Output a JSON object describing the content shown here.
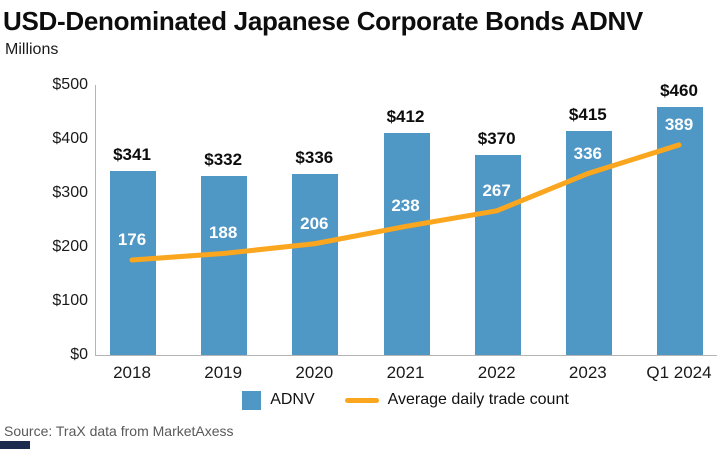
{
  "header": {
    "title": "USD-Denominated Japanese Corporate Bonds ADNV",
    "subtitle": "Millions"
  },
  "chart_data": {
    "type": "bar",
    "categories": [
      "2018",
      "2019",
      "2020",
      "2021",
      "2022",
      "2023",
      "Q1 2024"
    ],
    "series": [
      {
        "name": "ADNV",
        "type": "bar",
        "values": [
          341,
          332,
          336,
          412,
          370,
          415,
          460
        ],
        "labels": [
          "$341",
          "$332",
          "$336",
          "$412",
          "$370",
          "$415",
          "$460"
        ],
        "color": "#4F97C5"
      },
      {
        "name": "Average daily trade count",
        "type": "line",
        "values": [
          176,
          188,
          206,
          238,
          267,
          336,
          389
        ],
        "labels": [
          "176",
          "188",
          "206",
          "238",
          "267",
          "336",
          "389"
        ],
        "color": "#FAA61E"
      }
    ],
    "title": "USD-Denominated Japanese Corporate Bonds ADNV",
    "xlabel": "",
    "ylabel": "Millions",
    "ylim": [
      0,
      500
    ],
    "yticks": [
      {
        "value": 0,
        "label": "$0"
      },
      {
        "value": 100,
        "label": "$100"
      },
      {
        "value": 200,
        "label": "$200"
      },
      {
        "value": 300,
        "label": "$300"
      },
      {
        "value": 400,
        "label": "$400"
      },
      {
        "value": 500,
        "label": "$500"
      }
    ],
    "grid": false,
    "legend_position": "bottom"
  },
  "legend": {
    "items": [
      {
        "label": "ADNV",
        "swatch": "square",
        "color": "#4F97C5"
      },
      {
        "label": "Average daily trade count",
        "swatch": "line",
        "color": "#FAA61E"
      }
    ]
  },
  "footer": {
    "source": "Source: TraX data from MarketAxess"
  },
  "colors": {
    "bar": "#4F97C5",
    "line": "#FAA61E",
    "axis": "#B5B5B5",
    "title": "#0D0D0D",
    "source": "#595959",
    "corner_mark": "#1B2B4D"
  }
}
